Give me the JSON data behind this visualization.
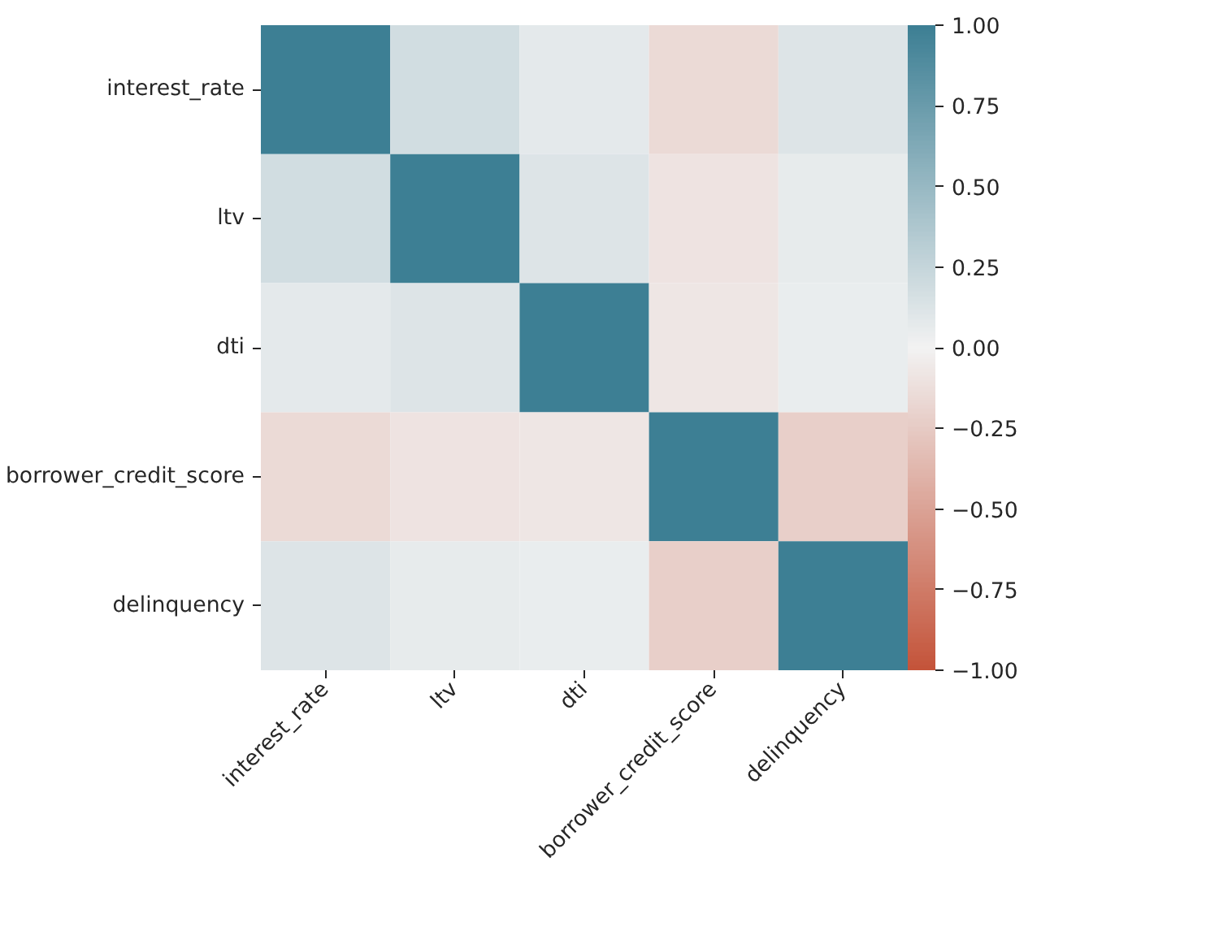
{
  "chart_data": {
    "type": "heatmap",
    "categories": [
      "interest_rate",
      "ltv",
      "dti",
      "borrower_credit_score",
      "delinquency"
    ],
    "y_categories": [
      "interest_rate",
      "ltv",
      "dti",
      "borrower_credit_score",
      "delinquency"
    ],
    "cells": [
      [
        1,
        0.18,
        0.08,
        -0.15,
        0.12
      ],
      [
        0.18,
        1,
        0.12,
        -0.1,
        0.07
      ],
      [
        0.08,
        0.12,
        1,
        -0.08,
        0.05
      ],
      [
        -0.15,
        -0.1,
        -0.08,
        1,
        -0.22
      ],
      [
        0.12,
        0.07,
        0.05,
        -0.22,
        1
      ]
    ],
    "clim": [
      -1,
      1
    ],
    "cticks": [
      {
        "value": 1,
        "label": "1.00"
      },
      0.75,
      {
        "value": 0.5,
        "label": "0.50"
      },
      0.25,
      {
        "value": 0,
        "label": "0.00"
      },
      {
        "value": -0.25,
        "label": "−0.25"
      },
      {
        "value": -0.5,
        "label": "−0.50"
      },
      {
        "value": -0.75,
        "label": "−0.75"
      },
      {
        "value": -1,
        "label": "−1.00"
      }
    ]
  }
}
